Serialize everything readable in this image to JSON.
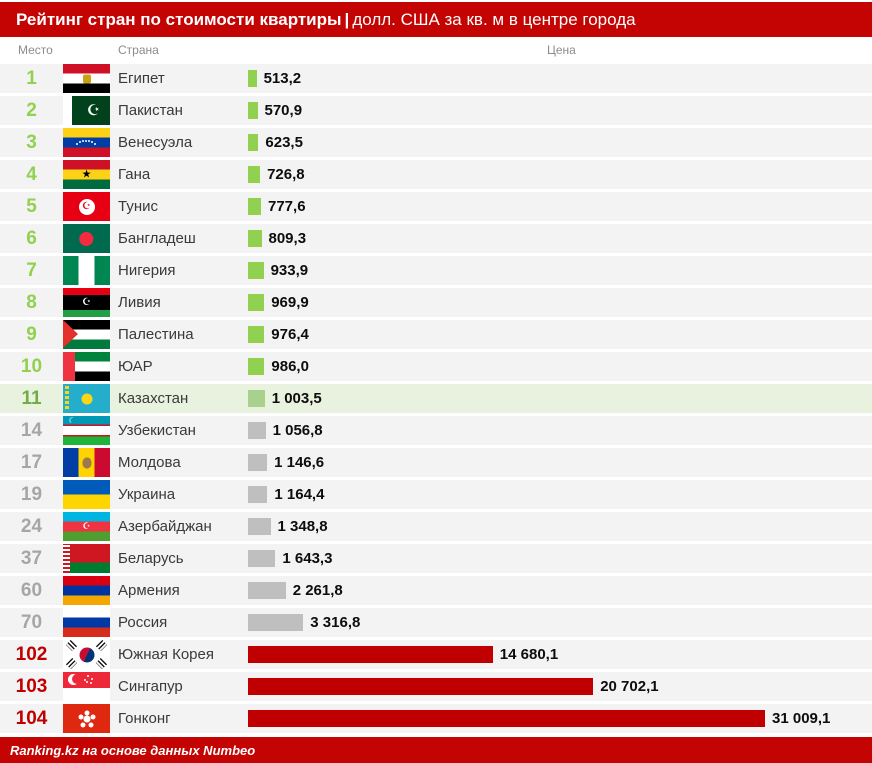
{
  "header": {
    "title_bold": "Рейтинг стран по стоимости квартиры",
    "title_sep": "|",
    "title_rest": "долл. США за кв. м в центре города"
  },
  "columns": {
    "rank": "Место",
    "country": "Страна",
    "price": "Цена"
  },
  "footer": {
    "credit": "Ranking.kz на основе данных Numbeo"
  },
  "colors": {
    "accent_red": "#C40303",
    "bar_red": "#C00000",
    "bar_green": "#92D050",
    "bar_green_muted": "#A9D18E",
    "bar_gray": "#BFBFBF",
    "rank_green": "#92D050",
    "rank_green_dark": "#70AD47",
    "rank_gray": "#A6A6A6",
    "rank_red": "#C00000",
    "row_bg": "#F3F3F3",
    "highlight_bg": "#E8F2DE",
    "header_text": "#8C8C8C"
  },
  "chart_data": {
    "type": "bar",
    "title": "Рейтинг стран по стоимости квартиры | долл. США за кв. м в центре города",
    "xlabel": "Цена",
    "ylabel": "Место / Страна",
    "unit": "долл. США за кв. м в центре города",
    "max_value": 31009.1,
    "legend": "off",
    "grid": "off",
    "rows": [
      {
        "rank": "1",
        "country": "Египет",
        "flag": "eg",
        "value": 513.2,
        "value_label": "513,2",
        "tier": "green",
        "highlight": false
      },
      {
        "rank": "2",
        "country": "Пакистан",
        "flag": "pk",
        "value": 570.9,
        "value_label": "570,9",
        "tier": "green",
        "highlight": false
      },
      {
        "rank": "3",
        "country": "Венесуэла",
        "flag": "ve",
        "value": 623.5,
        "value_label": "623,5",
        "tier": "green",
        "highlight": false
      },
      {
        "rank": "4",
        "country": "Гана",
        "flag": "gh",
        "value": 726.8,
        "value_label": "726,8",
        "tier": "green",
        "highlight": false
      },
      {
        "rank": "5",
        "country": "Тунис",
        "flag": "tn",
        "value": 777.6,
        "value_label": "777,6",
        "tier": "green",
        "highlight": false
      },
      {
        "rank": "6",
        "country": "Бангладеш",
        "flag": "bd",
        "value": 809.3,
        "value_label": "809,3",
        "tier": "green",
        "highlight": false
      },
      {
        "rank": "7",
        "country": "Нигерия",
        "flag": "ng",
        "value": 933.9,
        "value_label": "933,9",
        "tier": "green",
        "highlight": false
      },
      {
        "rank": "8",
        "country": "Ливия",
        "flag": "ly",
        "value": 969.9,
        "value_label": "969,9",
        "tier": "green",
        "highlight": false
      },
      {
        "rank": "9",
        "country": "Палестина",
        "flag": "ps",
        "value": 976.4,
        "value_label": "976,4",
        "tier": "green",
        "highlight": false
      },
      {
        "rank": "10",
        "country": "ЮАР",
        "flag": "za",
        "value": 986.0,
        "value_label": "986,0",
        "tier": "green",
        "highlight": false
      },
      {
        "rank": "11",
        "country": "Казахстан",
        "flag": "kz",
        "value": 1003.5,
        "value_label": "1 003,5",
        "tier": "kz",
        "highlight": true
      },
      {
        "rank": "14",
        "country": "Узбекистан",
        "flag": "uz",
        "value": 1056.8,
        "value_label": "1 056,8",
        "tier": "gray",
        "highlight": false
      },
      {
        "rank": "17",
        "country": "Молдова",
        "flag": "md",
        "value": 1146.6,
        "value_label": "1 146,6",
        "tier": "gray",
        "highlight": false
      },
      {
        "rank": "19",
        "country": "Украина",
        "flag": "ua",
        "value": 1164.4,
        "value_label": "1 164,4",
        "tier": "gray",
        "highlight": false
      },
      {
        "rank": "24",
        "country": "Азербайджан",
        "flag": "az",
        "value": 1348.8,
        "value_label": "1 348,8",
        "tier": "gray",
        "highlight": false
      },
      {
        "rank": "37",
        "country": "Беларусь",
        "flag": "by",
        "value": 1643.3,
        "value_label": "1 643,3",
        "tier": "gray",
        "highlight": false
      },
      {
        "rank": "60",
        "country": "Армения",
        "flag": "am",
        "value": 2261.8,
        "value_label": "2 261,8",
        "tier": "gray",
        "highlight": false
      },
      {
        "rank": "70",
        "country": "Россия",
        "flag": "ru",
        "value": 3316.8,
        "value_label": "3 316,8",
        "tier": "gray",
        "highlight": false
      },
      {
        "rank": "102",
        "country": "Южная Корея",
        "flag": "kr",
        "value": 14680.1,
        "value_label": "14 680,1",
        "tier": "red",
        "highlight": false
      },
      {
        "rank": "103",
        "country": "Сингапур",
        "flag": "sg",
        "value": 20702.1,
        "value_label": "20 702,1",
        "tier": "red",
        "highlight": false
      },
      {
        "rank": "104",
        "country": "Гонконг",
        "flag": "hk",
        "value": 31009.1,
        "value_label": "31 009,1",
        "tier": "red",
        "highlight": false
      }
    ]
  }
}
